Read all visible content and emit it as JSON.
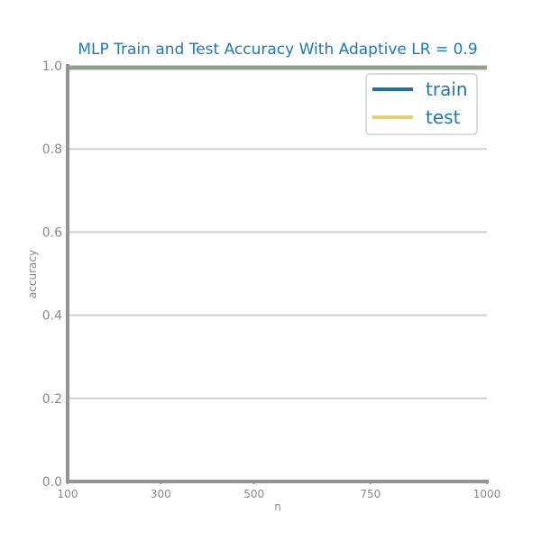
{
  "chart_data": {
    "type": "line",
    "title": "MLP Train and Test Accuracy With Adaptive LR = 0.9",
    "xlabel": "n",
    "ylabel": "accuracy",
    "x": [
      100,
      300,
      500,
      750,
      1000
    ],
    "xticks": [
      100,
      300,
      500,
      750,
      1000
    ],
    "yticks": [
      0.0,
      0.2,
      0.4,
      0.6,
      0.8,
      1.0
    ],
    "ylim": [
      0.0,
      1.0
    ],
    "xlim": [
      100,
      1000
    ],
    "grid": "horizontal",
    "legend_position": "top-right",
    "series": [
      {
        "name": "train",
        "color": "#1f6ea8",
        "values": [
          0.995,
          0.995,
          0.995,
          0.995,
          0.995
        ]
      },
      {
        "name": "test",
        "color": "#e7d06a",
        "values": [
          0.995,
          0.995,
          0.995,
          0.995,
          0.995
        ]
      }
    ]
  }
}
